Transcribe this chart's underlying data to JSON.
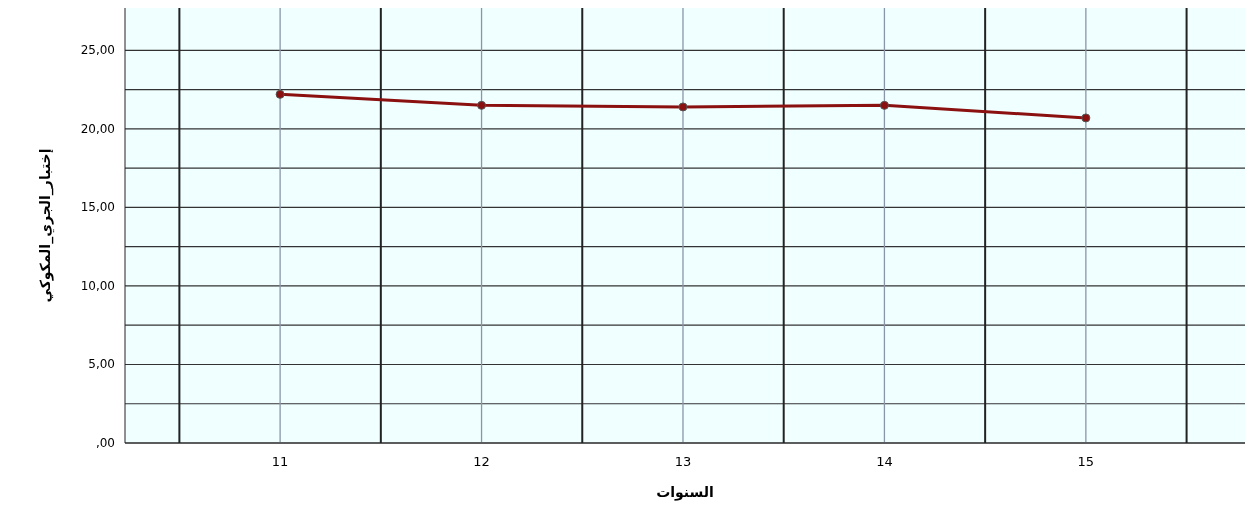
{
  "chart_data": {
    "type": "line",
    "xlabel": "السنوات",
    "ylabel": "إختبار_الجري_المكوكي",
    "x": [
      11,
      12,
      13,
      14,
      15
    ],
    "series": [
      {
        "color": "#8b1010",
        "values": [
          22.2,
          21.5,
          21.4,
          21.5,
          20.7
        ]
      }
    ],
    "xlim": [
      10.23,
      15.79
    ],
    "xticks": [
      {
        "value": 10.5,
        "label": null
      },
      11,
      {
        "value": 11.5,
        "label": null
      },
      12,
      {
        "value": 12.5,
        "label": null
      },
      13,
      {
        "value": 13.5,
        "label": null
      },
      14,
      {
        "value": 14.5,
        "label": null
      },
      15,
      {
        "value": 15.5,
        "label": null
      }
    ],
    "ylim": [
      0,
      27.7
    ],
    "yticks": [
      {
        "value": 0,
        "label": ",00"
      },
      {
        "value": 2.5,
        "label": null
      },
      {
        "value": 5,
        "label": "5,00"
      },
      {
        "value": 7.5,
        "label": null
      },
      {
        "value": 10,
        "label": "10,00"
      },
      {
        "value": 12.5,
        "label": null
      },
      {
        "value": 15,
        "label": "15,00"
      },
      {
        "value": 17.5,
        "label": null
      },
      {
        "value": 20,
        "label": "20,00"
      },
      {
        "value": 22.5,
        "label": null
      },
      {
        "value": 25,
        "label": "25,00"
      }
    ],
    "grid": true,
    "marker": "circle",
    "line_style": "solid"
  }
}
